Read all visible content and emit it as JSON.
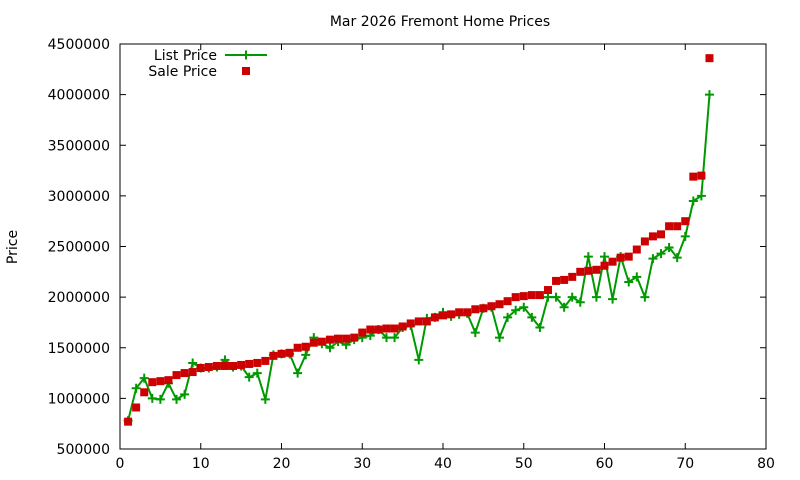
{
  "chart_data": {
    "type": "line+scatter",
    "title": "Mar 2026 Fremont Home Prices",
    "xlabel": "",
    "ylabel": "Price",
    "xlim": [
      0,
      80
    ],
    "ylim": [
      500000,
      4500000
    ],
    "xticks": [
      0,
      10,
      20,
      30,
      40,
      50,
      60,
      70,
      80
    ],
    "yticks": [
      500000,
      1000000,
      1500000,
      2000000,
      2500000,
      3000000,
      3500000,
      4000000,
      4500000
    ],
    "grid": false,
    "legend_placement": "top-left",
    "series": [
      {
        "name": "List Price",
        "kind": "line-with-plus-markers",
        "color": "#009900",
        "x": [
          1,
          2,
          3,
          4,
          5,
          6,
          7,
          8,
          9,
          10,
          11,
          12,
          13,
          14,
          15,
          16,
          17,
          18,
          19,
          20,
          21,
          22,
          23,
          24,
          25,
          26,
          27,
          28,
          29,
          30,
          31,
          32,
          33,
          34,
          35,
          36,
          37,
          38,
          39,
          40,
          41,
          42,
          43,
          44,
          45,
          46,
          47,
          48,
          49,
          50,
          51,
          52,
          53,
          54,
          55,
          56,
          57,
          58,
          59,
          60,
          61,
          62,
          63,
          64,
          65,
          66,
          67,
          68,
          69,
          70,
          71,
          72,
          73
        ],
        "y": [
          780000,
          1100000,
          1200000,
          1000000,
          990000,
          1150000,
          990000,
          1040000,
          1350000,
          1300000,
          1300000,
          1310000,
          1380000,
          1310000,
          1320000,
          1210000,
          1250000,
          990000,
          1430000,
          1440000,
          1440000,
          1250000,
          1430000,
          1600000,
          1540000,
          1500000,
          1560000,
          1530000,
          1580000,
          1600000,
          1620000,
          1680000,
          1600000,
          1600000,
          1700000,
          1720000,
          1380000,
          1790000,
          1800000,
          1850000,
          1810000,
          1830000,
          1840000,
          1650000,
          1890000,
          1900000,
          1600000,
          1800000,
          1870000,
          1900000,
          1800000,
          1700000,
          2000000,
          2000000,
          1900000,
          2000000,
          1950000,
          2400000,
          2000000,
          2400000,
          1980000,
          2400000,
          2150000,
          2200000,
          2000000,
          2380000,
          2430000,
          2490000,
          2390000,
          2600000,
          2950000,
          3000000,
          4000000
        ]
      },
      {
        "name": "Sale Price",
        "kind": "square-markers",
        "color": "#cc0000",
        "x": [
          1,
          2,
          3,
          4,
          5,
          6,
          7,
          8,
          9,
          10,
          11,
          12,
          13,
          14,
          15,
          16,
          17,
          18,
          19,
          20,
          21,
          22,
          23,
          24,
          25,
          26,
          27,
          28,
          29,
          30,
          31,
          32,
          33,
          34,
          35,
          36,
          37,
          38,
          39,
          40,
          41,
          42,
          43,
          44,
          45,
          46,
          47,
          48,
          49,
          50,
          51,
          52,
          53,
          54,
          55,
          56,
          57,
          58,
          59,
          60,
          61,
          62,
          63,
          64,
          65,
          66,
          67,
          68,
          69,
          70,
          71,
          72,
          73
        ],
        "y": [
          770000,
          910000,
          1060000,
          1160000,
          1170000,
          1180000,
          1230000,
          1250000,
          1260000,
          1300000,
          1310000,
          1320000,
          1320000,
          1320000,
          1330000,
          1340000,
          1350000,
          1370000,
          1420000,
          1440000,
          1450000,
          1500000,
          1510000,
          1550000,
          1560000,
          1580000,
          1590000,
          1590000,
          1600000,
          1650000,
          1680000,
          1680000,
          1690000,
          1690000,
          1710000,
          1740000,
          1760000,
          1760000,
          1800000,
          1820000,
          1830000,
          1850000,
          1850000,
          1880000,
          1890000,
          1910000,
          1930000,
          1960000,
          2000000,
          2010000,
          2020000,
          2020000,
          2070000,
          2160000,
          2170000,
          2200000,
          2250000,
          2260000,
          2270000,
          2310000,
          2350000,
          2390000,
          2400000,
          2470000,
          2550000,
          2600000,
          2620000,
          2700000,
          2700000,
          2750000,
          3190000,
          3200000,
          4360000
        ]
      }
    ]
  }
}
